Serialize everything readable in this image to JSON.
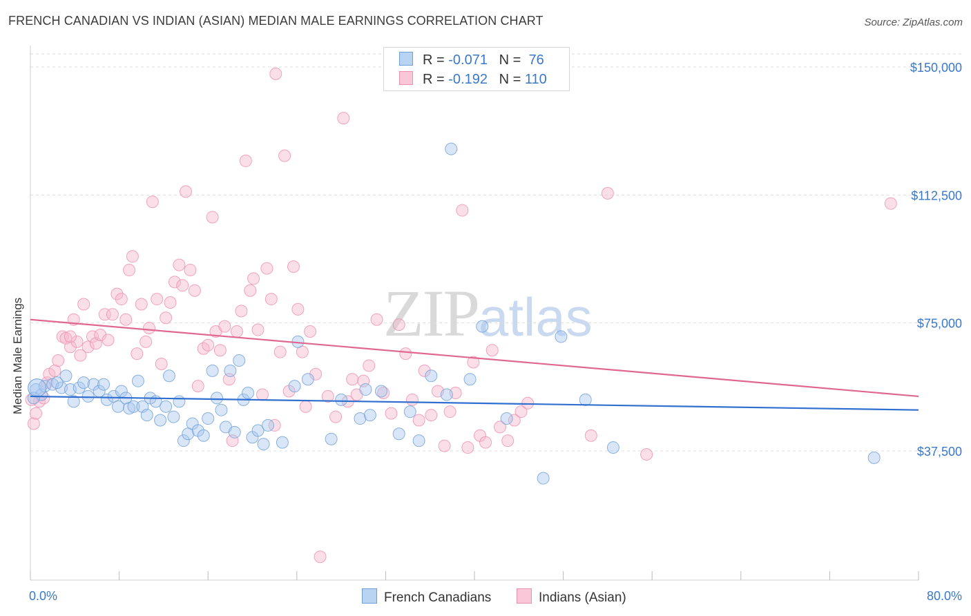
{
  "title": "FRENCH CANADIAN VS INDIAN (ASIAN) MEDIAN MALE EARNINGS CORRELATION CHART",
  "source": "Source: ZipAtlas.com",
  "watermark": {
    "zip": "ZIP",
    "atlas": "atlas"
  },
  "legend": {
    "rows": [
      {
        "r_label": "R =",
        "r_value": "-0.071",
        "n_label": "N =",
        "n_value": "76"
      },
      {
        "r_label": "R =",
        "r_value": "-0.192",
        "n_label": "N =",
        "n_value": "110"
      }
    ]
  },
  "bottom_legend": {
    "blue": "French Canadians",
    "pink": "Indians (Asian)"
  },
  "colors": {
    "blue_fill": "#a8c8f0",
    "blue_stroke": "#6f9fd8",
    "blue_line": "#2f6fcf",
    "pink_fill": "#f6b8cc",
    "pink_stroke": "#ee8fb0",
    "pink_line": "#e0678f",
    "tick_text": "#3a78c8",
    "grid": "#dddddd"
  },
  "chart_data": {
    "type": "scatter",
    "title": "FRENCH CANADIAN VS INDIAN (ASIAN) MEDIAN MALE EARNINGS CORRELATION CHART",
    "xlabel": "",
    "ylabel": "Median Male Earnings",
    "xlim": [
      0,
      80
    ],
    "ylim": [
      0,
      155000
    ],
    "x_tick_labels": [
      "0.0%",
      "80.0%"
    ],
    "y_ticks": [
      {
        "value": 150000,
        "label": "$150,000"
      },
      {
        "value": 112500,
        "label": "$112,500"
      },
      {
        "value": 75000,
        "label": "$75,000"
      },
      {
        "value": 37500,
        "label": "$37,500"
      }
    ],
    "grid": true,
    "legend_position": "top-center",
    "series": [
      {
        "name": "French Canadians",
        "trend": {
          "x": [
            0,
            80
          ],
          "y": [
            53500,
            49500
          ]
        },
        "points": [
          [
            0.5,
            55500
          ],
          [
            1.0,
            54000
          ],
          [
            1.3,
            56500
          ],
          [
            2.0,
            57000
          ],
          [
            2.8,
            56000
          ],
          [
            3.2,
            59500
          ],
          [
            3.6,
            55500
          ],
          [
            3.9,
            52000
          ],
          [
            4.4,
            56000
          ],
          [
            4.8,
            57500
          ],
          [
            5.2,
            53500
          ],
          [
            5.7,
            57000
          ],
          [
            6.2,
            55000
          ],
          [
            6.6,
            57000
          ],
          [
            6.9,
            52500
          ],
          [
            7.5,
            53500
          ],
          [
            7.9,
            50500
          ],
          [
            8.2,
            55000
          ],
          [
            8.6,
            53000
          ],
          [
            8.9,
            50000
          ],
          [
            9.3,
            50500
          ],
          [
            9.7,
            58000
          ],
          [
            10.1,
            50500
          ],
          [
            10.5,
            48000
          ],
          [
            10.8,
            53000
          ],
          [
            11.3,
            52000
          ],
          [
            11.7,
            46500
          ],
          [
            12.2,
            50500
          ],
          [
            12.5,
            59500
          ],
          [
            12.9,
            47500
          ],
          [
            13.4,
            52000
          ],
          [
            13.8,
            40500
          ],
          [
            14.2,
            42500
          ],
          [
            14.6,
            45500
          ],
          [
            15.1,
            43500
          ],
          [
            15.6,
            42000
          ],
          [
            16.0,
            47000
          ],
          [
            16.4,
            61000
          ],
          [
            16.8,
            53000
          ],
          [
            17.2,
            49500
          ],
          [
            17.6,
            44500
          ],
          [
            18.0,
            61000
          ],
          [
            18.4,
            43000
          ],
          [
            18.8,
            64000
          ],
          [
            19.2,
            52500
          ],
          [
            19.6,
            54500
          ],
          [
            20.0,
            41500
          ],
          [
            20.5,
            43500
          ],
          [
            21.0,
            39500
          ],
          [
            21.4,
            45000
          ],
          [
            22.7,
            40000
          ],
          [
            23.8,
            56500
          ],
          [
            24.1,
            69500
          ],
          [
            25.0,
            58500
          ],
          [
            27.1,
            41000
          ],
          [
            28.0,
            52500
          ],
          [
            29.7,
            47000
          ],
          [
            30.2,
            55500
          ],
          [
            30.6,
            48000
          ],
          [
            31.6,
            55000
          ],
          [
            33.2,
            42500
          ],
          [
            34.2,
            49000
          ],
          [
            35.0,
            40500
          ],
          [
            36.1,
            59500
          ],
          [
            37.5,
            54000
          ],
          [
            37.9,
            126000
          ],
          [
            39.6,
            58500
          ],
          [
            40.7,
            74000
          ],
          [
            42.9,
            47000
          ],
          [
            46.2,
            29500
          ],
          [
            47.8,
            71000
          ],
          [
            50.0,
            52500
          ],
          [
            52.5,
            38500
          ],
          [
            76.0,
            35500
          ],
          [
            0.3,
            53000
          ],
          [
            2.4,
            57500
          ]
        ]
      },
      {
        "name": "Indians (Asian)",
        "trend": {
          "x": [
            0,
            80
          ],
          "y": [
            76000,
            53500
          ]
        },
        "points": [
          [
            0.3,
            45500
          ],
          [
            0.5,
            48500
          ],
          [
            0.8,
            52000
          ],
          [
            1.2,
            53000
          ],
          [
            1.5,
            57500
          ],
          [
            1.7,
            60000
          ],
          [
            2.2,
            61000
          ],
          [
            2.5,
            64000
          ],
          [
            2.9,
            71000
          ],
          [
            3.2,
            70500
          ],
          [
            3.6,
            68000
          ],
          [
            3.9,
            76000
          ],
          [
            4.2,
            69500
          ],
          [
            4.5,
            65500
          ],
          [
            4.8,
            80500
          ],
          [
            5.2,
            68000
          ],
          [
            5.6,
            71000
          ],
          [
            5.9,
            69000
          ],
          [
            6.3,
            71500
          ],
          [
            6.7,
            77500
          ],
          [
            7.0,
            70000
          ],
          [
            7.4,
            77500
          ],
          [
            7.8,
            83500
          ],
          [
            8.2,
            82000
          ],
          [
            8.6,
            76000
          ],
          [
            8.9,
            90500
          ],
          [
            9.2,
            94500
          ],
          [
            9.6,
            66000
          ],
          [
            10.0,
            80500
          ],
          [
            10.4,
            69500
          ],
          [
            10.7,
            73500
          ],
          [
            11.0,
            110500
          ],
          [
            11.4,
            82000
          ],
          [
            11.8,
            63000
          ],
          [
            12.2,
            76500
          ],
          [
            12.6,
            81000
          ],
          [
            13.0,
            87000
          ],
          [
            13.4,
            92000
          ],
          [
            13.7,
            86000
          ],
          [
            14.0,
            113500
          ],
          [
            14.4,
            90500
          ],
          [
            14.8,
            84500
          ],
          [
            15.1,
            56500
          ],
          [
            15.6,
            67500
          ],
          [
            16.0,
            68500
          ],
          [
            16.4,
            106000
          ],
          [
            16.7,
            72500
          ],
          [
            17.1,
            67000
          ],
          [
            17.5,
            74000
          ],
          [
            17.9,
            58500
          ],
          [
            18.2,
            40500
          ],
          [
            18.6,
            72500
          ],
          [
            19.0,
            78500
          ],
          [
            19.4,
            122500
          ],
          [
            19.8,
            84500
          ],
          [
            20.1,
            88000
          ],
          [
            20.5,
            73000
          ],
          [
            20.9,
            54000
          ],
          [
            21.3,
            91000
          ],
          [
            21.7,
            82000
          ],
          [
            22.1,
            148000
          ],
          [
            22.5,
            66500
          ],
          [
            22.9,
            124000
          ],
          [
            23.3,
            55000
          ],
          [
            23.7,
            91500
          ],
          [
            24.1,
            79000
          ],
          [
            24.5,
            66500
          ],
          [
            24.8,
            50500
          ],
          [
            25.2,
            72500
          ],
          [
            25.7,
            60000
          ],
          [
            26.1,
            6500
          ],
          [
            26.8,
            53500
          ],
          [
            27.5,
            47500
          ],
          [
            28.2,
            135000
          ],
          [
            28.6,
            52000
          ],
          [
            29.0,
            58500
          ],
          [
            29.4,
            54000
          ],
          [
            30.0,
            58000
          ],
          [
            30.5,
            62500
          ],
          [
            31.2,
            76000
          ],
          [
            31.8,
            54500
          ],
          [
            32.5,
            48500
          ],
          [
            33.2,
            74500
          ],
          [
            33.8,
            66000
          ],
          [
            34.4,
            52500
          ],
          [
            35.0,
            46500
          ],
          [
            35.5,
            61000
          ],
          [
            36.1,
            48000
          ],
          [
            36.7,
            55000
          ],
          [
            37.3,
            39000
          ],
          [
            37.8,
            49000
          ],
          [
            38.3,
            54500
          ],
          [
            38.9,
            108000
          ],
          [
            39.4,
            38500
          ],
          [
            39.9,
            63500
          ],
          [
            40.5,
            42000
          ],
          [
            41.0,
            40000
          ],
          [
            41.6,
            67000
          ],
          [
            42.3,
            44500
          ],
          [
            43.0,
            40500
          ],
          [
            43.6,
            46500
          ],
          [
            44.2,
            49000
          ],
          [
            44.8,
            51500
          ],
          [
            50.5,
            42000
          ],
          [
            52.0,
            113000
          ],
          [
            55.5,
            36500
          ],
          [
            77.5,
            110000
          ],
          [
            0.1,
            52500
          ],
          [
            3.6,
            71000
          ],
          [
            22.0,
            45000
          ]
        ]
      }
    ]
  }
}
